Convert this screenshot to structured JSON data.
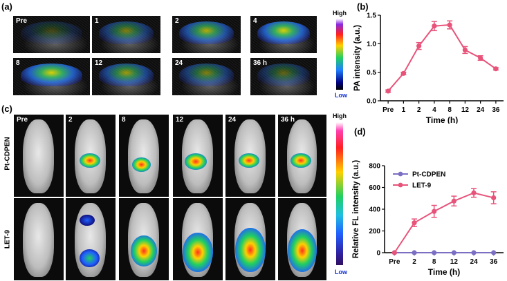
{
  "panels": {
    "a": "(a)",
    "b": "(b)",
    "c": "(c)",
    "d": "(d)"
  },
  "panel_a": {
    "frames": [
      "Pre",
      "1",
      "2",
      "4",
      "8",
      "12",
      "24",
      "36 h"
    ],
    "scale_high": "High",
    "scale_low": "Low"
  },
  "panel_c": {
    "frames": [
      "Pre",
      "2",
      "8",
      "12",
      "24",
      "36 h"
    ],
    "rows": [
      "Pt-CDPEN",
      "LET-9"
    ],
    "scale_high": "High",
    "scale_low": "Low"
  },
  "colors": {
    "pink": "#e8537a",
    "purple": "#7b6fc4",
    "axis": "#000000"
  },
  "chart_data": [
    {
      "id": "b",
      "type": "line",
      "title": "",
      "xlabel": "Time (h)",
      "ylabel": "PA intensity (a.u.)",
      "categories": [
        "Pre",
        "1",
        "2",
        "4",
        "8",
        "12",
        "24",
        "36"
      ],
      "ylim": [
        0,
        1.5
      ],
      "yticks": [
        "0.0",
        "0.5",
        "1.0",
        "1.5"
      ],
      "series": [
        {
          "name": "PA",
          "values": [
            0.17,
            0.48,
            0.96,
            1.31,
            1.33,
            0.89,
            0.75,
            0.56
          ],
          "errors": [
            0.02,
            0.02,
            0.06,
            0.08,
            0.07,
            0.06,
            0.04,
            0.02
          ]
        }
      ]
    },
    {
      "id": "d",
      "type": "line",
      "title": "",
      "xlabel": "Time (h)",
      "ylabel": "Relative FL intensity  (a.u.)",
      "categories": [
        "Pre",
        "2",
        "8",
        "12",
        "24",
        "36"
      ],
      "ylim": [
        0,
        800
      ],
      "yticks": [
        "0",
        "200",
        "400",
        "600",
        "800"
      ],
      "legend": "top-left",
      "series": [
        {
          "name": "Pt-CDPEN",
          "values": [
            0,
            0,
            0,
            0,
            0,
            0
          ],
          "errors": [
            0,
            0,
            0,
            0,
            0,
            0
          ]
        },
        {
          "name": "LET-9",
          "values": [
            0,
            275,
            380,
            475,
            550,
            505
          ],
          "errors": [
            0,
            35,
            55,
            45,
            40,
            55
          ]
        }
      ]
    }
  ]
}
